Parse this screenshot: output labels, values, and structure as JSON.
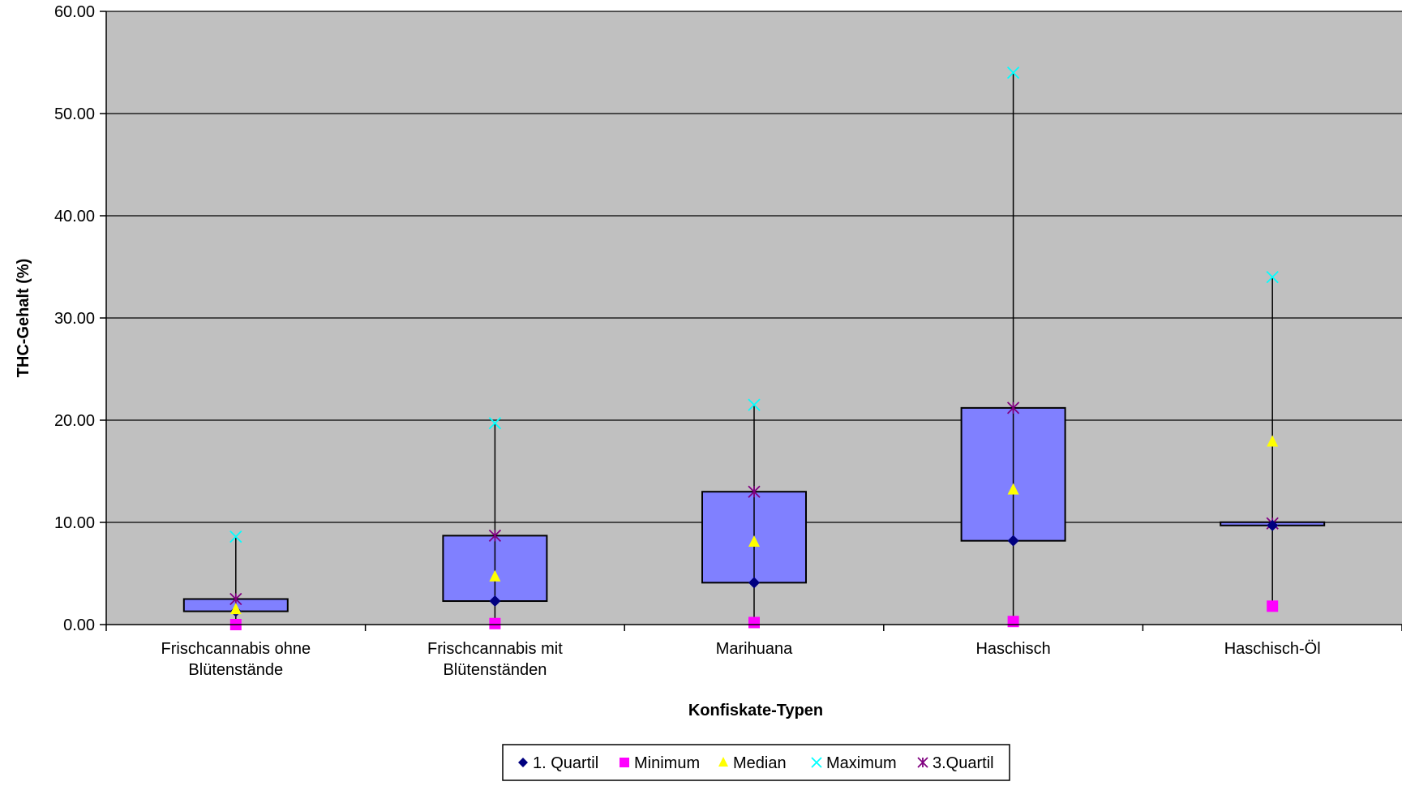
{
  "chart_data": {
    "type": "box",
    "xlabel": "Konfiskate-Typen",
    "ylabel": "THC-Gehalt (%)",
    "ylim": [
      0,
      60
    ],
    "yticks": [
      "0.00",
      "10.00",
      "20.00",
      "30.00",
      "40.00",
      "50.00",
      "60.00"
    ],
    "ytick_values": [
      0,
      10,
      20,
      30,
      40,
      50,
      60
    ],
    "grid": true,
    "legend_position": "bottom",
    "categories": [
      [
        "Frischcannabis ohne",
        "Blütenstände"
      ],
      [
        "Frischcannabis mit",
        "Blütenständen"
      ],
      [
        "Marihuana"
      ],
      [
        "Haschisch"
      ],
      [
        "Haschisch-Öl"
      ]
    ],
    "series": [
      {
        "name": "1. Quartil",
        "marker": "diamond",
        "color": "#000080",
        "values": [
          1.3,
          2.3,
          4.1,
          8.2,
          9.7
        ]
      },
      {
        "name": "Minimum",
        "marker": "square",
        "color": "#FF00FF",
        "values": [
          0.0,
          0.1,
          0.2,
          0.3,
          1.8
        ]
      },
      {
        "name": "Median",
        "marker": "triangle",
        "color": "#FFFF00",
        "values": [
          1.5,
          4.7,
          8.1,
          13.2,
          17.9
        ]
      },
      {
        "name": "Maximum",
        "marker": "x",
        "color": "#00FFFF",
        "values": [
          8.6,
          19.7,
          21.5,
          54.0,
          34.0
        ]
      },
      {
        "name": "3.Quartil",
        "marker": "star",
        "color": "#800080",
        "values": [
          2.5,
          8.7,
          13.0,
          21.2,
          9.9
        ]
      }
    ],
    "colors": {
      "plot_background": "#C0C0C0",
      "box_fill": "#8080FF",
      "gridline": "#000000"
    }
  }
}
